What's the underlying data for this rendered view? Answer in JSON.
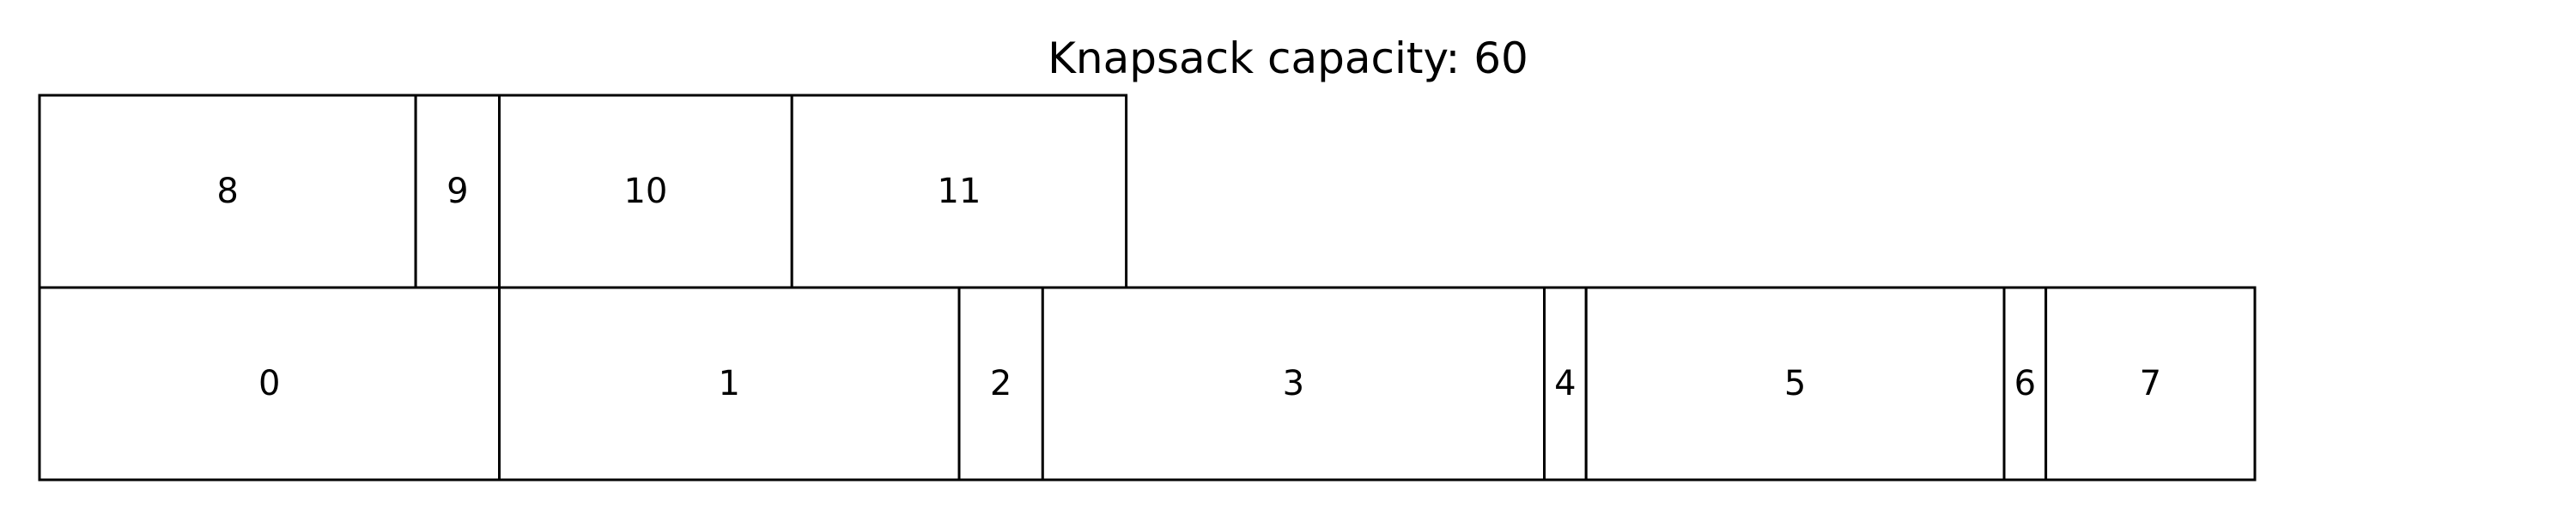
{
  "title": "Knapsack capacity: 60",
  "rows": [
    {
      "items": [
        {
          "label": "8",
          "size": 9
        },
        {
          "label": "9",
          "size": 2
        },
        {
          "label": "10",
          "size": 7
        },
        {
          "label": "11",
          "size": 8
        }
      ]
    },
    {
      "items": [
        {
          "label": "0",
          "size": 11
        },
        {
          "label": "1",
          "size": 11
        },
        {
          "label": "2",
          "size": 2
        },
        {
          "label": "3",
          "size": 12
        },
        {
          "label": "4",
          "size": 1
        },
        {
          "label": "5",
          "size": 10
        },
        {
          "label": "6",
          "size": 1
        },
        {
          "label": "7",
          "size": 5
        }
      ]
    }
  ],
  "colors": {
    "stroke": "#000000",
    "fill": "#ffffff",
    "text": "#000000"
  }
}
